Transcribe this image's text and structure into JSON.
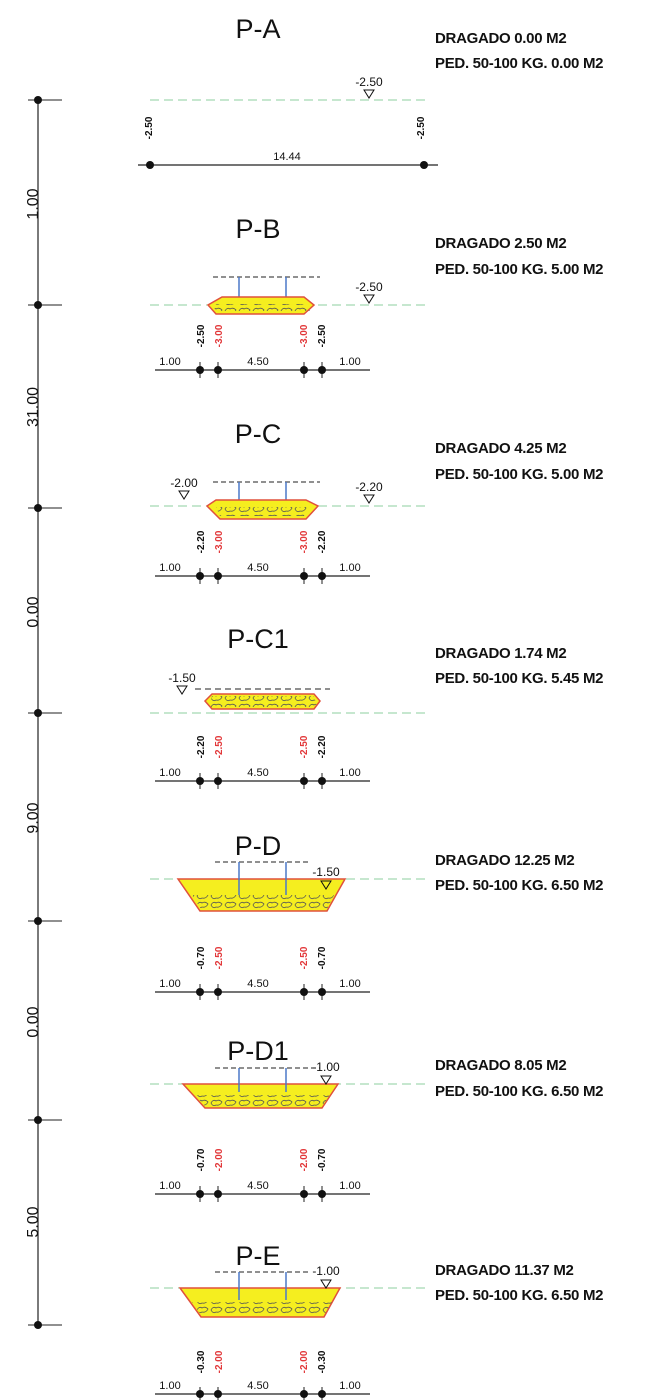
{
  "colors": {
    "water": "#8ccf9f",
    "dredge_fill": "#f5ee1f",
    "dredge_outline": "#e0503c",
    "rock_fill": "#f3ecc8",
    "pole": "#4a78c8",
    "red_text": "#e2383a",
    "ink": "#111111"
  },
  "chainage": {
    "distances": [
      "1.00",
      "31.00",
      "0.00",
      "9.00",
      "0.00",
      "5.00"
    ]
  },
  "sections": [
    {
      "id": "P-A",
      "dragado": "DRAGADO 0.00 M2",
      "ped": "PED. 50-100 KG. 0.00 M2",
      "water_level": "-2.50",
      "left_level": "",
      "left_depth": "-2.50",
      "right_depth": "-2.50",
      "width": "14.44"
    },
    {
      "id": "P-B",
      "dragado": "DRAGADO 2.50 M2",
      "ped": "PED. 50-100 KG. 5.00 M2",
      "water_level": "-2.50",
      "left_level": "",
      "bank_left": "1.00",
      "bank_right": "1.00",
      "width": "4.50",
      "depth_outer": "-2.50",
      "depth_inner": "-3.00"
    },
    {
      "id": "P-C",
      "dragado": "DRAGADO 4.25 M2",
      "ped": "PED. 50-100 KG. 5.00 M2",
      "water_level": "-2.20",
      "left_level": "-2.00",
      "bank_left": "1.00",
      "bank_right": "1.00",
      "width": "4.50",
      "depth_outer": "-2.20",
      "depth_inner": "-3.00"
    },
    {
      "id": "P-C1",
      "dragado": "DRAGADO 1.74 M2",
      "ped": "PED. 50-100 KG. 5.45 M2",
      "water_level": "",
      "left_level": "-1.50",
      "bank_left": "1.00",
      "bank_right": "1.00",
      "width": "4.50",
      "depth_outer": "-2.20",
      "depth_inner": "-2.50"
    },
    {
      "id": "P-D",
      "dragado": "DRAGADO 12.25 M2",
      "ped": "PED. 50-100 KG. 6.50 M2",
      "water_level": "-1.50",
      "left_level": "",
      "bank_left": "1.00",
      "bank_right": "1.00",
      "width": "4.50",
      "depth_outer": "-0.70",
      "depth_inner": "-2.50"
    },
    {
      "id": "P-D1",
      "dragado": "DRAGADO 8.05 M2",
      "ped": "PED. 50-100 KG. 6.50 M2",
      "water_level": "-1.00",
      "left_level": "",
      "bank_left": "1.00",
      "bank_right": "1.00",
      "width": "4.50",
      "depth_outer": "-0.70",
      "depth_inner": "-2.00"
    },
    {
      "id": "P-E",
      "dragado": "DRAGADO 11.37 M2",
      "ped": "PED. 50-100 KG. 6.50 M2",
      "water_level": "-1.00",
      "left_level": "",
      "bank_left": "1.00",
      "bank_right": "1.00",
      "width": "4.50",
      "depth_outer": "-0.30",
      "depth_inner": "-2.00"
    }
  ]
}
